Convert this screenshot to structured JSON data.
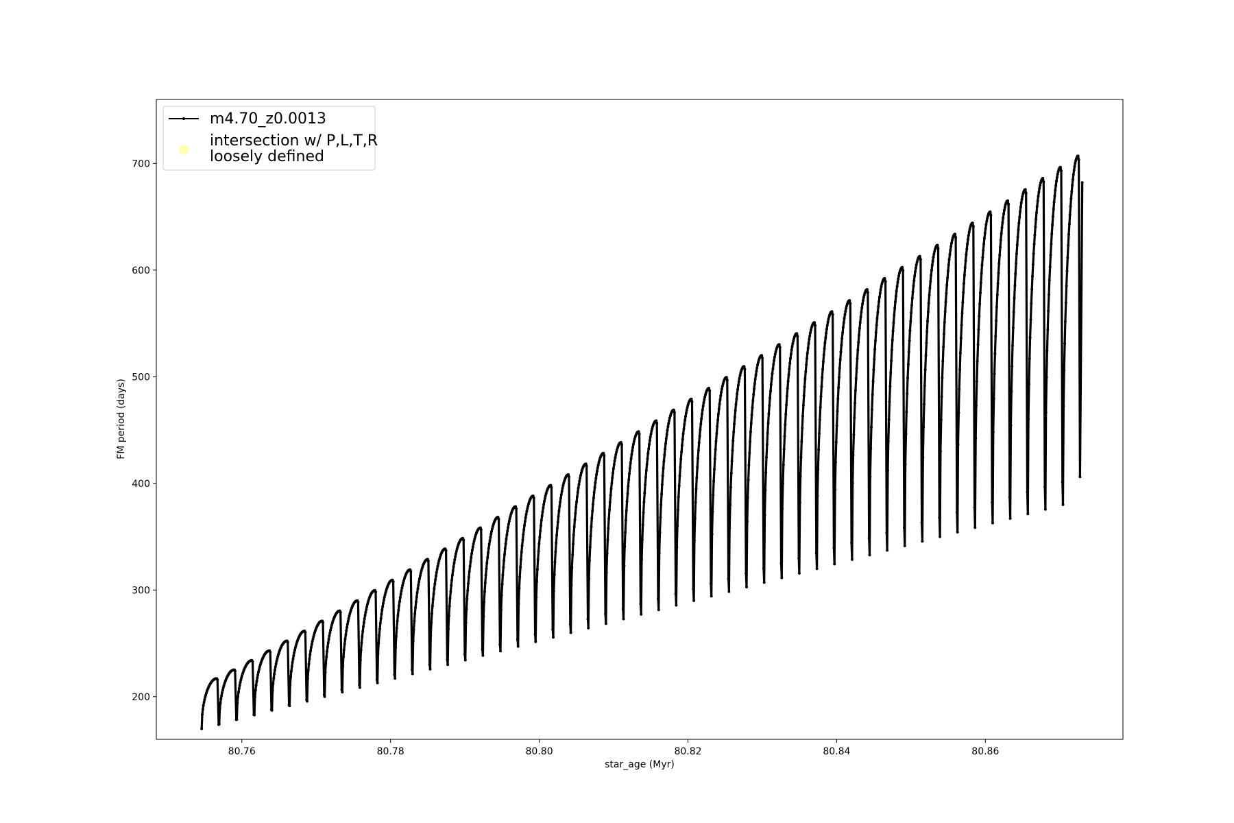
{
  "chart_data": {
    "type": "line",
    "title": "",
    "xlabel": "star_age (Myr)",
    "ylabel": "FM period (days)",
    "xlim": [
      80.7485,
      80.8785
    ],
    "ylim": [
      160,
      760
    ],
    "xticks": [
      80.76,
      80.78,
      80.8,
      80.82,
      80.84,
      80.86
    ],
    "yticks": [
      200,
      300,
      400,
      500,
      600,
      700
    ],
    "grid": false,
    "legend_placement": "upper-left",
    "colors": {
      "series": "#000000",
      "intersection": "#ffffb3"
    },
    "series": [
      {
        "name": "m4.70_z0.0013",
        "marker": "point",
        "color": "#000000",
        "cycles": {
          "count": 50,
          "start_age": 80.7546,
          "end_age": 80.8728,
          "first_peak": 217,
          "last_peak": 707,
          "first_trough": 170,
          "last_trough": 380,
          "final_point": 682
        }
      },
      {
        "name": "intersection w/ P,L,T,R\nloosely defined",
        "marker": "circle",
        "color": "#ffffb3",
        "points": []
      }
    ],
    "legend": [
      {
        "label_line1": "m4.70_z0.0013",
        "label_line2": ""
      },
      {
        "label_line1": "intersection w/ P,L,T,R",
        "label_line2": "loosely defined"
      }
    ]
  }
}
